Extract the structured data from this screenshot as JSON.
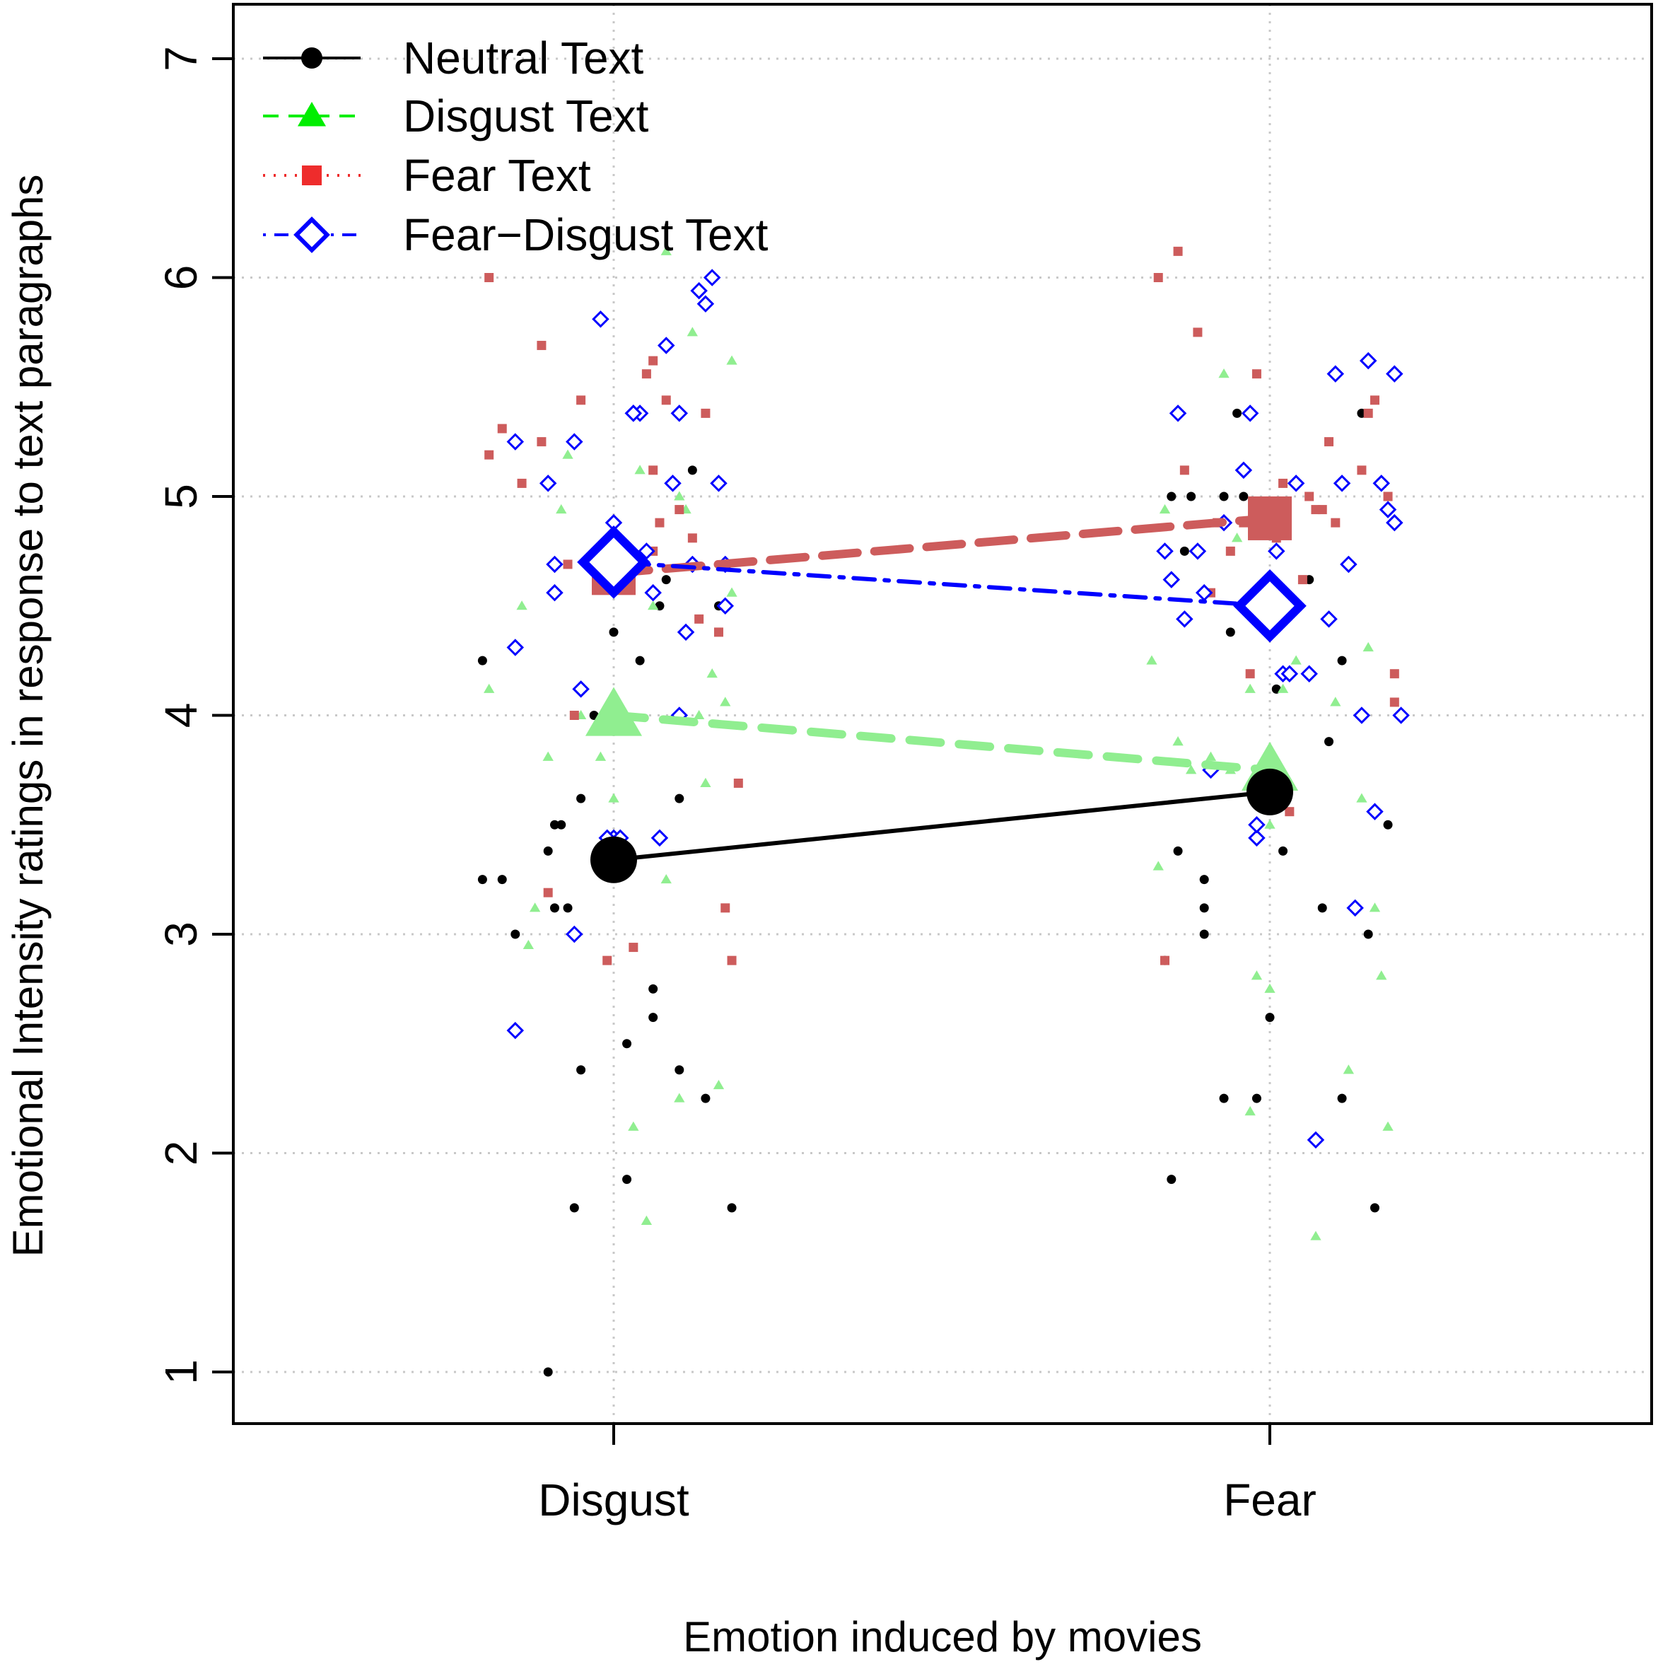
{
  "chart_data": {
    "type": "line",
    "xlabel": "Emotion induced by movies",
    "ylabel": "Emotional Intensity ratings in response to text paragraphs",
    "categories": [
      "Disgust",
      "Fear"
    ],
    "ylim": [
      1,
      7
    ],
    "yticks": [
      "1",
      "2",
      "3",
      "4",
      "5",
      "6",
      "7"
    ],
    "grid": true,
    "legend_position": "top-left",
    "series": [
      {
        "name": "Neutral Text",
        "key": "neutral",
        "color": "#000000",
        "marker": "circle",
        "line": "solid",
        "means": [
          3.34,
          3.65
        ],
        "points": [
          [
            -0.2,
            4.25
          ],
          [
            -0.2,
            3.25
          ],
          [
            -0.17,
            3.25
          ],
          [
            -0.15,
            3.0
          ],
          [
            -0.1,
            3.38
          ],
          [
            -0.09,
            3.12
          ],
          [
            -0.09,
            3.5
          ],
          [
            -0.08,
            3.5
          ],
          [
            -0.07,
            3.12
          ],
          [
            -0.05,
            3.62
          ],
          [
            -0.03,
            4.0
          ],
          [
            -0.06,
            1.75
          ],
          [
            -0.05,
            2.38
          ],
          [
            0.0,
            4.38
          ],
          [
            0.02,
            2.5
          ],
          [
            0.02,
            1.88
          ],
          [
            0.06,
            2.62
          ],
          [
            0.07,
            4.5
          ],
          [
            0.08,
            4.62
          ],
          [
            0.1,
            2.38
          ],
          [
            0.1,
            3.62
          ],
          [
            0.12,
            5.12
          ],
          [
            0.14,
            2.25
          ],
          [
            0.16,
            4.5
          ],
          [
            0.18,
            1.75
          ],
          [
            0.02,
            4.62
          ],
          [
            0.06,
            2.75
          ],
          [
            -0.1,
            1.0
          ],
          [
            0.03,
            5.38
          ],
          [
            0.04,
            4.25
          ],
          [
            0.85,
            5.0
          ],
          [
            0.86,
            3.38
          ],
          [
            0.87,
            4.75
          ],
          [
            0.88,
            5.0
          ],
          [
            0.9,
            3.25
          ],
          [
            0.9,
            3.12
          ],
          [
            0.9,
            3.0
          ],
          [
            0.84,
            2.88
          ],
          [
            0.85,
            1.88
          ],
          [
            0.93,
            2.25
          ],
          [
            0.94,
            4.38
          ],
          [
            0.95,
            5.38
          ],
          [
            0.98,
            2.25
          ],
          [
            1.0,
            2.62
          ],
          [
            1.01,
            4.12
          ],
          [
            1.02,
            3.38
          ],
          [
            1.06,
            4.62
          ],
          [
            1.08,
            3.12
          ],
          [
            1.09,
            3.88
          ],
          [
            1.11,
            4.25
          ],
          [
            1.11,
            2.25
          ],
          [
            1.14,
            5.38
          ],
          [
            1.15,
            3.0
          ],
          [
            1.16,
            1.75
          ],
          [
            1.18,
            3.5
          ],
          [
            0.96,
            5.0
          ],
          [
            0.93,
            5.0
          ],
          [
            0.99,
            4.88
          ]
        ]
      },
      {
        "name": "Disgust Text",
        "key": "disgust",
        "color": "#90ee90",
        "marker": "triangle",
        "line": "dashed",
        "means": [
          4.0,
          3.75
        ],
        "points": [
          [
            -0.19,
            4.12
          ],
          [
            -0.14,
            4.5
          ],
          [
            -0.13,
            2.95
          ],
          [
            -0.12,
            3.12
          ],
          [
            -0.1,
            3.81
          ],
          [
            -0.08,
            4.94
          ],
          [
            -0.07,
            5.19
          ],
          [
            -0.05,
            4.0
          ],
          [
            -0.02,
            3.81
          ],
          [
            0.0,
            3.62
          ],
          [
            0.01,
            4.62
          ],
          [
            0.03,
            2.12
          ],
          [
            0.05,
            1.69
          ],
          [
            0.08,
            3.25
          ],
          [
            0.08,
            6.12
          ],
          [
            0.1,
            5.0
          ],
          [
            0.1,
            2.25
          ],
          [
            0.12,
            5.75
          ],
          [
            0.13,
            4.0
          ],
          [
            0.14,
            3.69
          ],
          [
            0.15,
            4.19
          ],
          [
            0.16,
            2.31
          ],
          [
            0.17,
            4.06
          ],
          [
            0.18,
            5.62
          ],
          [
            0.04,
            5.12
          ],
          [
            0.06,
            4.5
          ],
          [
            0.11,
            4.94
          ],
          [
            0.18,
            4.56
          ],
          [
            0.82,
            4.25
          ],
          [
            0.83,
            3.31
          ],
          [
            0.84,
            4.94
          ],
          [
            0.86,
            3.88
          ],
          [
            0.88,
            3.75
          ],
          [
            0.9,
            4.56
          ],
          [
            0.91,
            3.81
          ],
          [
            0.93,
            5.56
          ],
          [
            0.95,
            4.81
          ],
          [
            0.97,
            2.19
          ],
          [
            0.97,
            4.12
          ],
          [
            0.98,
            2.81
          ],
          [
            1.0,
            2.75
          ],
          [
            1.0,
            3.5
          ],
          [
            1.02,
            4.12
          ],
          [
            1.04,
            4.25
          ],
          [
            1.07,
            1.62
          ],
          [
            1.1,
            4.06
          ],
          [
            1.12,
            2.38
          ],
          [
            1.14,
            3.62
          ],
          [
            1.15,
            4.31
          ],
          [
            1.16,
            3.12
          ],
          [
            1.17,
            2.81
          ],
          [
            1.18,
            2.12
          ],
          [
            1.03,
            4.5
          ],
          [
            0.94,
            3.75
          ]
        ]
      },
      {
        "name": "Fear Text",
        "key": "fear",
        "color": "#cd5c5c",
        "legend_color": "#ee2c2c",
        "marker": "square",
        "line": "long-dashed",
        "legend_line": "dotted",
        "means": [
          4.65,
          4.9
        ],
        "points": [
          [
            -0.19,
            6.0
          ],
          [
            -0.19,
            5.19
          ],
          [
            -0.17,
            5.31
          ],
          [
            -0.14,
            5.06
          ],
          [
            -0.11,
            5.25
          ],
          [
            -0.11,
            5.69
          ],
          [
            -0.1,
            3.19
          ],
          [
            -0.07,
            4.69
          ],
          [
            -0.06,
            4.0
          ],
          [
            -0.05,
            5.44
          ],
          [
            -0.02,
            4.75
          ],
          [
            -0.01,
            2.88
          ],
          [
            0.03,
            2.94
          ],
          [
            0.05,
            5.56
          ],
          [
            0.06,
            5.12
          ],
          [
            0.06,
            5.62
          ],
          [
            0.07,
            4.88
          ],
          [
            0.08,
            5.44
          ],
          [
            0.12,
            4.81
          ],
          [
            0.13,
            4.44
          ],
          [
            0.14,
            5.38
          ],
          [
            0.16,
            4.38
          ],
          [
            0.17,
            3.12
          ],
          [
            0.18,
            2.88
          ],
          [
            0.19,
            3.69
          ],
          [
            0.06,
            4.75
          ],
          [
            0.1,
            4.94
          ],
          [
            0.83,
            6.0
          ],
          [
            0.84,
            2.88
          ],
          [
            0.86,
            6.12
          ],
          [
            0.87,
            5.12
          ],
          [
            0.89,
            5.75
          ],
          [
            0.91,
            4.56
          ],
          [
            0.92,
            4.88
          ],
          [
            0.94,
            4.75
          ],
          [
            0.96,
            4.88
          ],
          [
            0.97,
            4.19
          ],
          [
            0.98,
            5.56
          ],
          [
            1.02,
            5.06
          ],
          [
            1.03,
            3.56
          ],
          [
            1.05,
            4.62
          ],
          [
            1.06,
            5.0
          ],
          [
            1.07,
            4.94
          ],
          [
            1.09,
            5.25
          ],
          [
            1.1,
            4.88
          ],
          [
            1.14,
            5.12
          ],
          [
            1.15,
            5.38
          ],
          [
            1.16,
            5.44
          ],
          [
            1.17,
            5.06
          ],
          [
            1.18,
            5.0
          ],
          [
            1.19,
            4.06
          ],
          [
            1.19,
            4.19
          ],
          [
            1.08,
            4.94
          ],
          [
            1.01,
            4.81
          ]
        ]
      },
      {
        "name": "Fear−Disgust Text",
        "key": "feardisgust",
        "color": "#0000ff",
        "marker": "diamond",
        "line": "dot-dash",
        "means": [
          4.7,
          4.5
        ],
        "points": [
          [
            -0.15,
            4.31
          ],
          [
            -0.15,
            5.25
          ],
          [
            -0.15,
            2.56
          ],
          [
            -0.1,
            5.06
          ],
          [
            -0.09,
            4.69
          ],
          [
            -0.09,
            4.56
          ],
          [
            -0.06,
            5.25
          ],
          [
            -0.05,
            4.12
          ],
          [
            -0.06,
            3.0
          ],
          [
            -0.03,
            4.69
          ],
          [
            -0.02,
            5.81
          ],
          [
            0.0,
            4.88
          ],
          [
            0.0,
            3.44
          ],
          [
            -0.01,
            3.44
          ],
          [
            0.01,
            3.44
          ],
          [
            0.03,
            5.38
          ],
          [
            0.04,
            5.38
          ],
          [
            0.05,
            4.75
          ],
          [
            0.06,
            4.56
          ],
          [
            0.07,
            3.44
          ],
          [
            0.08,
            5.69
          ],
          [
            0.09,
            5.06
          ],
          [
            0.1,
            4.0
          ],
          [
            0.11,
            4.38
          ],
          [
            0.12,
            4.69
          ],
          [
            0.13,
            5.94
          ],
          [
            0.14,
            5.88
          ],
          [
            0.15,
            6.0
          ],
          [
            0.16,
            5.06
          ],
          [
            0.17,
            4.5
          ],
          [
            0.17,
            4.69
          ],
          [
            -0.01,
            4.69
          ],
          [
            0.1,
            5.38
          ],
          [
            0.03,
            5.38
          ],
          [
            0.84,
            4.75
          ],
          [
            0.85,
            4.62
          ],
          [
            0.86,
            5.38
          ],
          [
            0.87,
            4.44
          ],
          [
            0.89,
            4.75
          ],
          [
            0.9,
            4.56
          ],
          [
            0.91,
            3.75
          ],
          [
            0.93,
            4.88
          ],
          [
            0.96,
            5.12
          ],
          [
            0.97,
            5.38
          ],
          [
            0.98,
            3.44
          ],
          [
            0.98,
            3.5
          ],
          [
            1.01,
            4.75
          ],
          [
            1.02,
            4.19
          ],
          [
            1.03,
            4.19
          ],
          [
            1.04,
            5.06
          ],
          [
            1.06,
            4.19
          ],
          [
            1.07,
            2.06
          ],
          [
            1.09,
            4.44
          ],
          [
            1.1,
            5.56
          ],
          [
            1.11,
            5.06
          ],
          [
            1.12,
            4.69
          ],
          [
            1.13,
            3.12
          ],
          [
            1.14,
            4.0
          ],
          [
            1.15,
            5.62
          ],
          [
            1.16,
            3.56
          ],
          [
            1.17,
            5.06
          ],
          [
            1.18,
            4.94
          ],
          [
            1.19,
            4.88
          ],
          [
            1.19,
            5.56
          ],
          [
            1.2,
            4.0
          ]
        ]
      }
    ]
  }
}
